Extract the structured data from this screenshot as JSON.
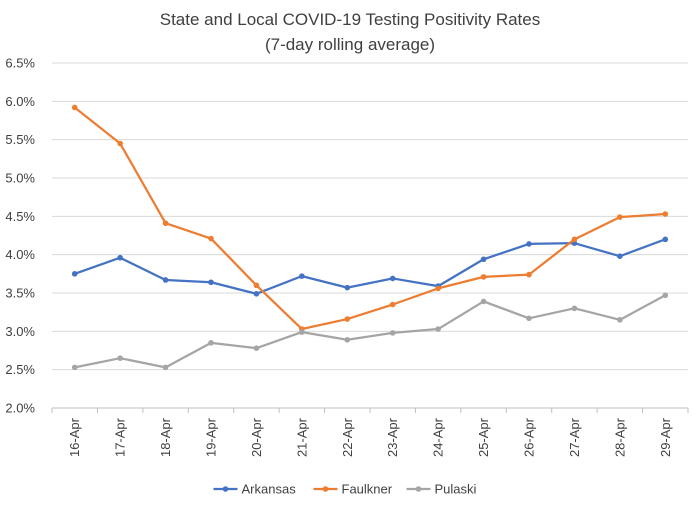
{
  "chart_data": {
    "type": "line",
    "title": [
      "State and Local COVID-19 Testing Positivity Rates",
      "(7-day rolling average)"
    ],
    "xlabel": "",
    "ylabel": "",
    "categories": [
      "16-Apr",
      "17-Apr",
      "18-Apr",
      "19-Apr",
      "20-Apr",
      "21-Apr",
      "22-Apr",
      "23-Apr",
      "24-Apr",
      "25-Apr",
      "26-Apr",
      "27-Apr",
      "28-Apr",
      "29-Apr"
    ],
    "ylim": [
      0.02,
      0.065
    ],
    "yticks": [
      "2.0%",
      "2.5%",
      "3.0%",
      "3.5%",
      "4.0%",
      "4.5%",
      "5.0%",
      "5.5%",
      "6.0%",
      "6.5%"
    ],
    "grid": true,
    "legend_position": "bottom",
    "series": [
      {
        "name": "Arkansas",
        "color": "#4472c4",
        "values": [
          0.0375,
          0.0396,
          0.0367,
          0.0364,
          0.0349,
          0.0372,
          0.0357,
          0.0369,
          0.0359,
          0.0394,
          0.0414,
          0.0415,
          0.0398,
          0.042
        ]
      },
      {
        "name": "Faulkner",
        "color": "#ed7d31",
        "values": [
          0.0592,
          0.0545,
          0.0441,
          0.0421,
          0.036,
          0.0303,
          0.0316,
          0.0335,
          0.0356,
          0.0371,
          0.0374,
          0.042,
          0.0449,
          0.0453
        ]
      },
      {
        "name": "Pulaski",
        "color": "#a5a5a5",
        "values": [
          0.0253,
          0.0265,
          0.0253,
          0.0285,
          0.0278,
          0.0299,
          0.0289,
          0.0298,
          0.0303,
          0.0339,
          0.0317,
          0.033,
          0.0315,
          0.0347
        ]
      }
    ]
  }
}
